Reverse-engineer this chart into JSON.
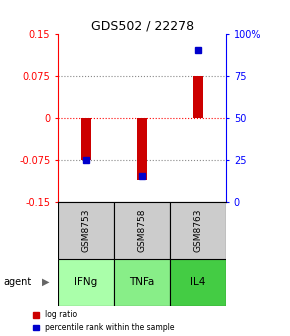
{
  "title": "GDS502 / 22278",
  "samples": [
    "GSM8753",
    "GSM8758",
    "GSM8763"
  ],
  "agents": [
    "IFNg",
    "TNFa",
    "IL4"
  ],
  "log_ratios": [
    -0.075,
    -0.112,
    0.075
  ],
  "percentile_ranks": [
    25,
    15,
    90
  ],
  "ylim_left": [
    -0.15,
    0.15
  ],
  "ylim_right": [
    0,
    100
  ],
  "yticks_left": [
    -0.15,
    -0.075,
    0,
    0.075,
    0.15
  ],
  "ytick_labels_left": [
    "-0.15",
    "-0.075",
    "0",
    "0.075",
    "0.15"
  ],
  "yticks_right": [
    0,
    25,
    50,
    75,
    100
  ],
  "ytick_labels_right": [
    "0",
    "25",
    "50",
    "75",
    "100%"
  ],
  "bar_color": "#cc0000",
  "dot_color": "#0000cc",
  "sample_box_color": "#cccccc",
  "agent_colors": [
    "#aaffaa",
    "#88ee88",
    "#44cc44"
  ],
  "legend_log_ratio": "log ratio",
  "legend_percentile": "percentile rank within the sample",
  "agent_label": "agent",
  "bar_width": 0.18,
  "dot_size": 5
}
